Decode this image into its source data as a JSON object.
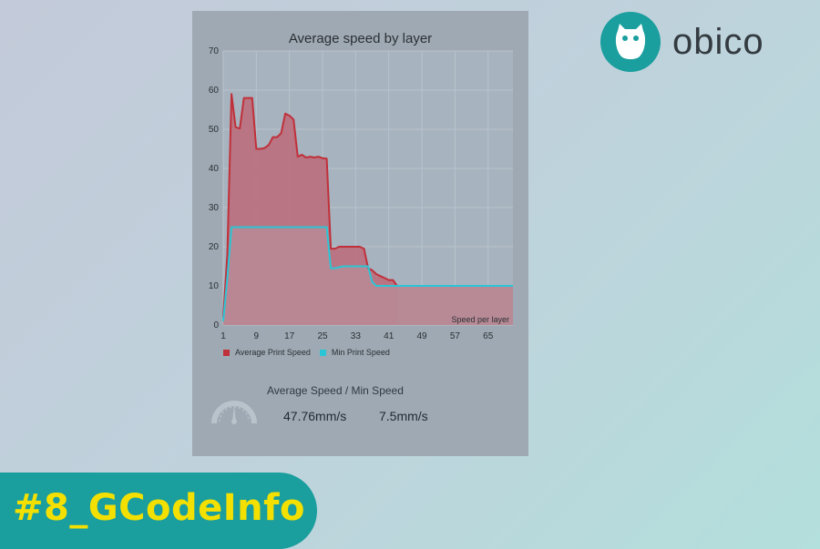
{
  "brand": {
    "name": "obico",
    "color": "#1a9e9e"
  },
  "banner": {
    "text": "#8_GCodeInfo",
    "text_color": "#f4e000",
    "bg_color": "#1a9e9e"
  },
  "speed_summary": {
    "label": "Average Speed / Min Speed",
    "average": "47.76mm/s",
    "minimum": "7.5mm/s",
    "icon": "speedometer-icon"
  },
  "chart_data": {
    "type": "area",
    "title": "Average speed by layer",
    "xlabel": "Speed per layer",
    "ylabel": "",
    "xlim": [
      1,
      71
    ],
    "ylim": [
      0,
      70
    ],
    "x_ticks": [
      1,
      9,
      17,
      25,
      33,
      41,
      49,
      57,
      65
    ],
    "y_ticks": [
      0,
      10,
      20,
      30,
      40,
      50,
      60,
      70
    ],
    "grid": true,
    "legend_position": "bottom-left",
    "series": [
      {
        "name": "Average Print Speed",
        "color": "#c0303a",
        "x": [
          1,
          2,
          3,
          4,
          5,
          6,
          7,
          8,
          9,
          10,
          11,
          12,
          13,
          14,
          15,
          16,
          17,
          18,
          19,
          20,
          21,
          22,
          23,
          24,
          25,
          26,
          27,
          28,
          29,
          30,
          31,
          32,
          33,
          34,
          35,
          36,
          37,
          38,
          39,
          40,
          41,
          42,
          43
        ],
        "values": [
          2,
          18,
          59,
          50.5,
          50.2,
          58,
          58,
          58,
          45,
          45,
          45.2,
          46,
          48,
          48,
          49,
          54,
          53.5,
          52.5,
          43,
          43.5,
          42.8,
          43,
          42.8,
          43,
          42.6,
          42.5,
          19.5,
          19.5,
          20,
          20,
          20,
          20,
          20,
          20,
          19.5,
          14.5,
          14,
          13,
          12.5,
          12,
          11.5,
          11.5,
          10
        ]
      },
      {
        "name": "Min Print Speed",
        "color": "#2ac6d6",
        "x": [
          1,
          2,
          3,
          4,
          10,
          16,
          22,
          26,
          27,
          28,
          30,
          32,
          34,
          36,
          37,
          38,
          39,
          40,
          41,
          42,
          43,
          50,
          60,
          71
        ],
        "values": [
          1,
          12,
          25,
          25,
          25,
          25,
          25,
          25,
          14.5,
          14.5,
          15,
          15,
          15,
          15,
          11,
          10,
          10,
          10,
          10,
          10,
          10,
          10,
          10,
          10
        ]
      }
    ]
  }
}
